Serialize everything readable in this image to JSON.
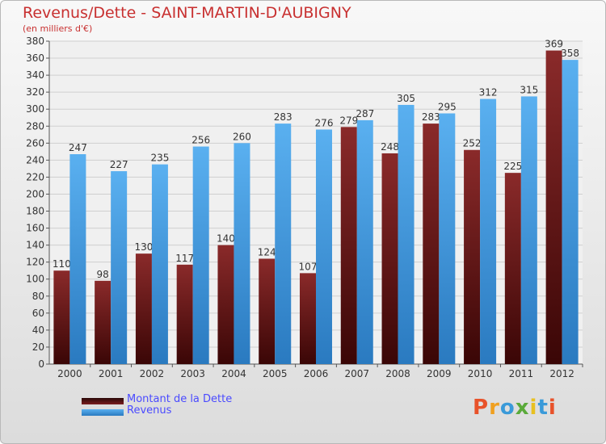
{
  "chart_data": {
    "type": "bar",
    "title": "Revenus/Dette - SAINT-MARTIN-D'AUBIGNY",
    "subtitle": "(en milliers d'€)",
    "categories": [
      "2000",
      "2001",
      "2002",
      "2003",
      "2004",
      "2005",
      "2006",
      "2007",
      "2008",
      "2009",
      "2010",
      "2011",
      "2012"
    ],
    "series": [
      {
        "name": "Montant de la Dette",
        "values": [
          110,
          98,
          130,
          117,
          140,
          124,
          107,
          279,
          248,
          283,
          252,
          225,
          369
        ],
        "color": "#7a1e20"
      },
      {
        "name": "Revenus",
        "values": [
          247,
          227,
          235,
          256,
          260,
          283,
          276,
          287,
          305,
          295,
          312,
          315,
          358
        ],
        "color": "#3a96db"
      }
    ],
    "ylim": [
      0,
      380
    ],
    "ytick_step": 20,
    "grid": true,
    "legend_position": "bottom-left"
  },
  "logo": {
    "letters": [
      "P",
      "r",
      "o",
      "x",
      "i",
      "t",
      "i"
    ],
    "colors": [
      "#e8522a",
      "#f0a020",
      "#3a9ad9",
      "#5aaa3a",
      "#e8c020",
      "#3a9ad9",
      "#e8522a"
    ]
  }
}
